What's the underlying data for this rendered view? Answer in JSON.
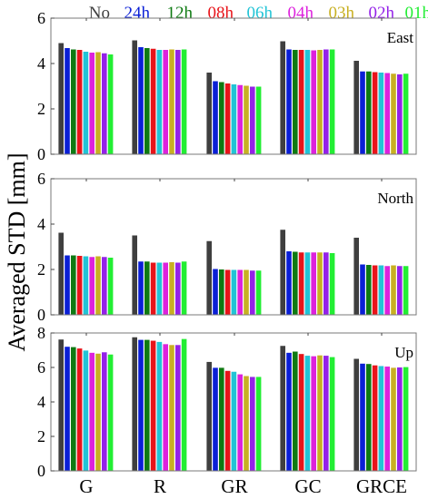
{
  "chart_data": {
    "type": "bar",
    "ylabel": "Averaged STD [mm]",
    "categories": [
      "G",
      "R",
      "GR",
      "GC",
      "GRCE"
    ],
    "legend": {
      "placement": "top",
      "entries": [
        {
          "name": "No",
          "color": "#3f3f3f"
        },
        {
          "name": "24h",
          "color": "#0a1fd6"
        },
        {
          "name": "12h",
          "color": "#0e7a12"
        },
        {
          "name": "08h",
          "color": "#e8141a"
        },
        {
          "name": "06h",
          "color": "#22c4d6"
        },
        {
          "name": "04h",
          "color": "#dd22dd"
        },
        {
          "name": "03h",
          "color": "#c8b022"
        },
        {
          "name": "02h",
          "color": "#9422e8"
        },
        {
          "name": "01h",
          "color": "#22ee33"
        }
      ]
    },
    "panels": [
      {
        "label": "East",
        "ylim": [
          0,
          6
        ],
        "yticks": [
          "0",
          "2",
          "4",
          "6"
        ],
        "series_values": [
          [
            4.9,
            4.68,
            4.62,
            4.6,
            4.52,
            4.48,
            4.5,
            4.45,
            4.4
          ],
          [
            5.02,
            4.72,
            4.68,
            4.65,
            4.6,
            4.6,
            4.62,
            4.6,
            4.62
          ],
          [
            3.6,
            3.22,
            3.18,
            3.12,
            3.08,
            3.05,
            3.02,
            2.98,
            2.98
          ],
          [
            4.98,
            4.62,
            4.6,
            4.6,
            4.6,
            4.58,
            4.6,
            4.62,
            4.62
          ],
          [
            4.12,
            3.65,
            3.65,
            3.62,
            3.6,
            3.58,
            3.55,
            3.52,
            3.55
          ]
        ]
      },
      {
        "label": "North",
        "ylim": [
          0,
          6
        ],
        "yticks": [
          "0",
          "2",
          "4",
          "6"
        ],
        "series_values": [
          [
            3.62,
            2.62,
            2.62,
            2.6,
            2.58,
            2.55,
            2.58,
            2.55,
            2.52
          ],
          [
            3.5,
            2.35,
            2.35,
            2.3,
            2.3,
            2.3,
            2.32,
            2.3,
            2.35
          ],
          [
            3.25,
            2.02,
            2.0,
            1.98,
            1.98,
            1.98,
            1.98,
            1.95,
            1.95
          ],
          [
            3.75,
            2.8,
            2.78,
            2.75,
            2.75,
            2.75,
            2.75,
            2.75,
            2.72
          ],
          [
            3.4,
            2.22,
            2.2,
            2.18,
            2.18,
            2.15,
            2.18,
            2.15,
            2.15
          ]
        ]
      },
      {
        "label": "Up",
        "ylim": [
          0,
          8
        ],
        "yticks": [
          "0",
          "2",
          "4",
          "6",
          "8"
        ],
        "series_values": [
          [
            7.62,
            7.2,
            7.18,
            7.1,
            6.98,
            6.85,
            6.8,
            6.88,
            6.75
          ],
          [
            7.75,
            7.6,
            7.6,
            7.55,
            7.48,
            7.35,
            7.3,
            7.3,
            7.65
          ],
          [
            6.32,
            5.98,
            5.98,
            5.8,
            5.75,
            5.6,
            5.5,
            5.45,
            5.45
          ],
          [
            7.25,
            6.85,
            6.92,
            6.78,
            6.68,
            6.65,
            6.7,
            6.68,
            6.6
          ],
          [
            6.5,
            6.22,
            6.2,
            6.12,
            6.08,
            6.05,
            5.98,
            6.0,
            6.02
          ]
        ]
      }
    ]
  }
}
